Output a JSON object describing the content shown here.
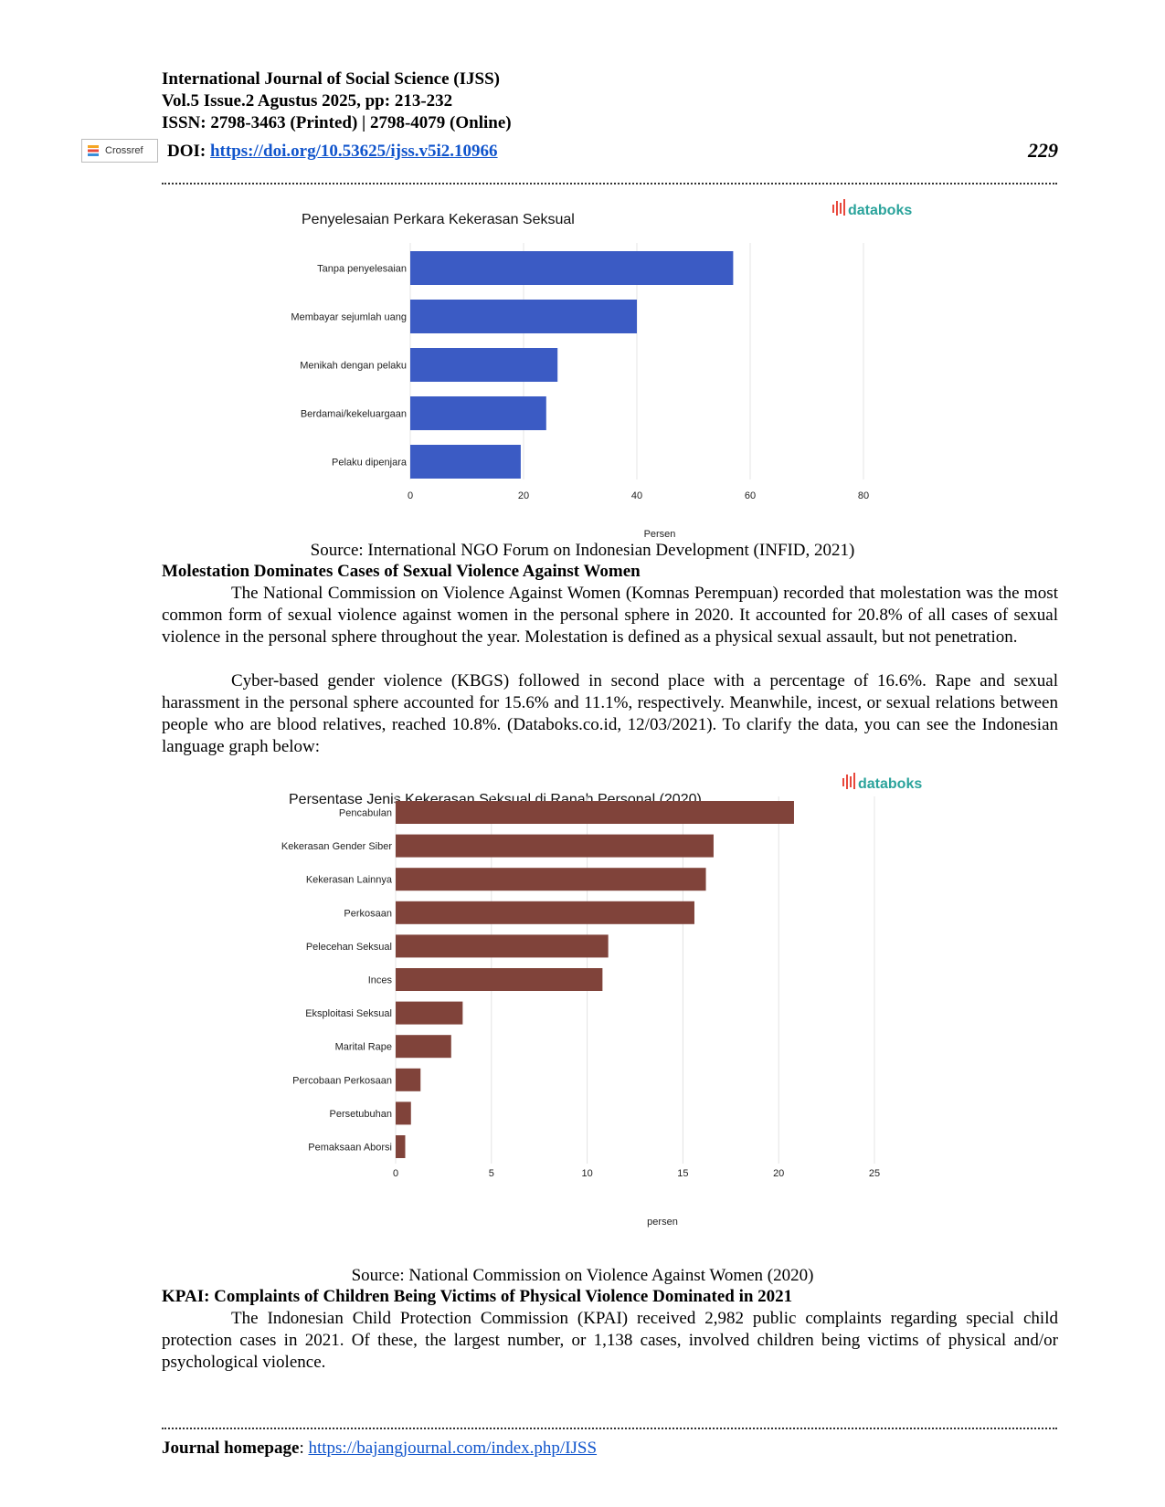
{
  "header": {
    "journal": "International Journal of Social Science (IJSS)",
    "volume": "Vol.5 Issue.2 Agustus 2025, pp: 213-232",
    "issn": "ISSN: 2798-3463 (Printed) | 2798-4079 (Online)",
    "crossref_label": "Crossref",
    "doi_label": "DOI: ",
    "doi_url": "https://doi.org/10.53625/ijss.v5i2.10966",
    "page_number": "229"
  },
  "chart1": {
    "brand": "databoks",
    "caption": "Source: International NGO Forum on Indonesian Development (INFID, 2021)"
  },
  "section1": {
    "heading": "Molestation Dominates Cases of Sexual Violence Against Women",
    "p1": "The National Commission on Violence Against Women (Komnas Perempuan) recorded that molestation was the most common form of sexual violence against women in the personal sphere in 2020. It accounted for 20.8% of all cases of sexual violence in the personal sphere throughout the year. Molestation is defined as a physical sexual assault, but not penetration.",
    "p2": "Cyber-based gender violence (KBGS) followed in second place with a percentage of 16.6%. Rape and sexual harassment in the personal sphere accounted for 15.6% and 11.1%, respectively. Meanwhile, incest, or sexual relations between people who are blood relatives, reached 10.8%. (Databoks.co.id, 12/03/2021). To clarify the data, you can see the Indonesian language graph below:"
  },
  "chart2": {
    "brand": "databoks",
    "caption": "Source: National Commission on Violence Against Women (2020)"
  },
  "section2": {
    "heading": "KPAI: Complaints of Children Being Victims of Physical Violence Dominated in 2021",
    "p1": "The Indonesian Child Protection Commission (KPAI) received 2,982 public complaints regarding special child protection cases in 2021. Of these, the largest number, or 1,138 cases, involved children being victims of physical and/or psychological violence."
  },
  "footer": {
    "label": "Journal homepage",
    "sep": ": ",
    "url": "https://bajangjournal.com/index.php/IJSS"
  },
  "colors": {
    "chart1_bar": "#3b5bc4",
    "chart2_bar": "#80433a",
    "brand_red": "#e8483c",
    "brand_teal": "#2aa39b",
    "link": "#1155cc"
  },
  "chart_data": [
    {
      "type": "bar",
      "orientation": "horizontal",
      "title": "Penyelesaian Perkara Kekerasan Seksual",
      "xlabel": "Persen",
      "ylabel": "",
      "categories": [
        "Tanpa penyelesaian",
        "Membayar sejumlah uang",
        "Menikah dengan pelaku",
        "Berdamai/kekeluargaan",
        "Pelaku dipenjara"
      ],
      "values": [
        57,
        40,
        26,
        24,
        19.5
      ],
      "xlim": [
        0,
        80
      ],
      "ticks": [
        0,
        20,
        40,
        60,
        80
      ],
      "grid": true,
      "legend": "none"
    },
    {
      "type": "bar",
      "orientation": "horizontal",
      "title": "Persentase Jenis Kekerasan Seksual di Ranah Personal (2020)",
      "xlabel": "persen",
      "ylabel": "",
      "categories": [
        "Pencabulan",
        "Kekerasan Gender Siber",
        "Kekerasan Lainnya",
        "Perkosaan",
        "Pelecehan Seksual",
        "Inces",
        "Eksploitasi Seksual",
        "Marital Rape",
        "Percobaan Perkosaan",
        "Persetubuhan",
        "Pemaksaan Aborsi"
      ],
      "values": [
        20.8,
        16.6,
        16.2,
        15.6,
        11.1,
        10.8,
        3.5,
        2.9,
        1.3,
        0.8,
        0.5
      ],
      "xlim": [
        0,
        25
      ],
      "ticks": [
        0,
        5,
        10,
        15,
        20,
        25
      ],
      "grid": true,
      "legend": "none"
    }
  ]
}
